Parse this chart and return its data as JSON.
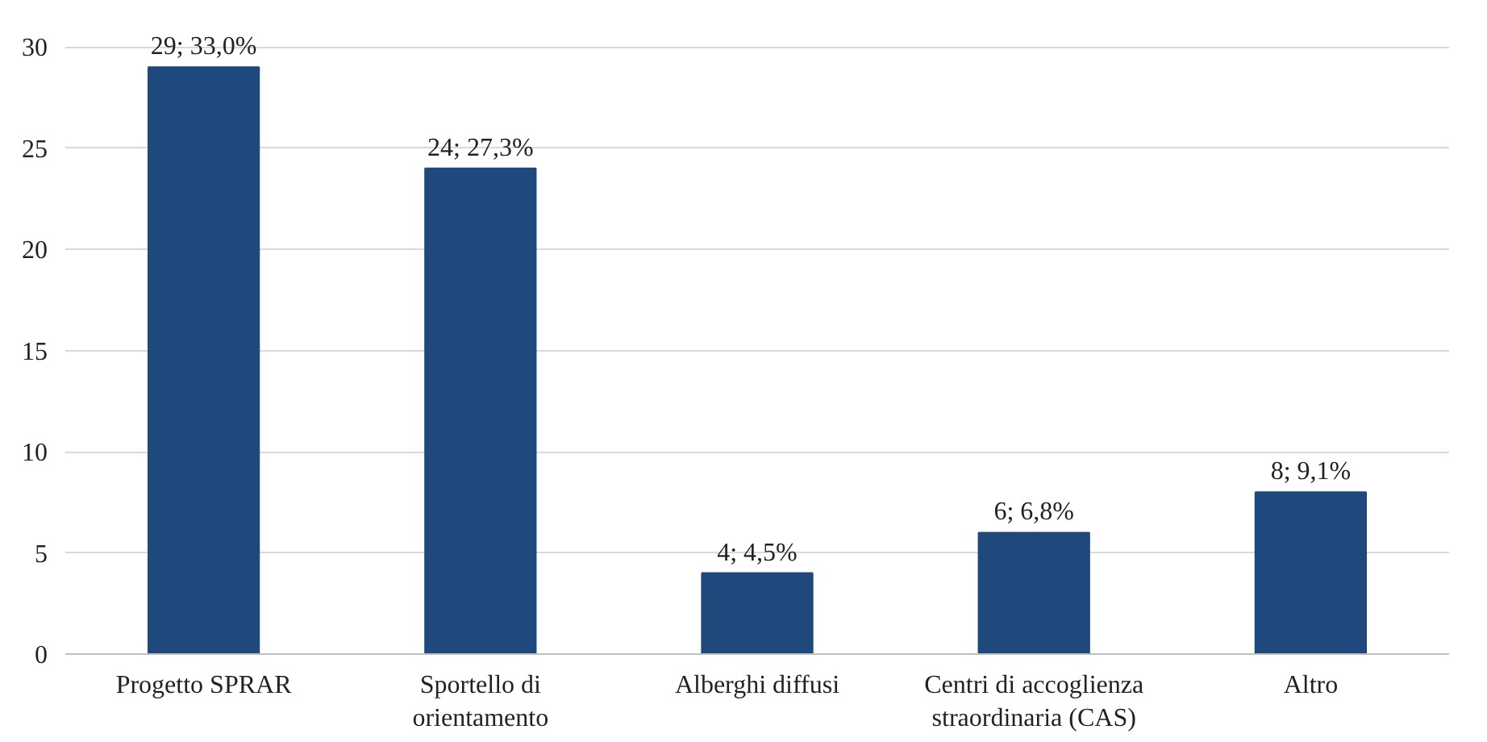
{
  "chart_data": {
    "type": "bar",
    "categories": [
      "Progetto SPRAR",
      "Sportello di\norientamento",
      "Alberghi diffusi",
      "Centri di accoglienza\nstraordinaria (CAS)",
      "Altro"
    ],
    "values": [
      29,
      24,
      4,
      6,
      8
    ],
    "value_labels": [
      "29; 33,0%",
      "24; 27,3%",
      "4; 4,5%",
      "6; 6,8%",
      "8; 9,1%"
    ],
    "color": "#1f497d",
    "ylim": [
      0,
      30
    ],
    "yticks": [
      0,
      5,
      10,
      15,
      20,
      25,
      30
    ],
    "grid": "y"
  }
}
